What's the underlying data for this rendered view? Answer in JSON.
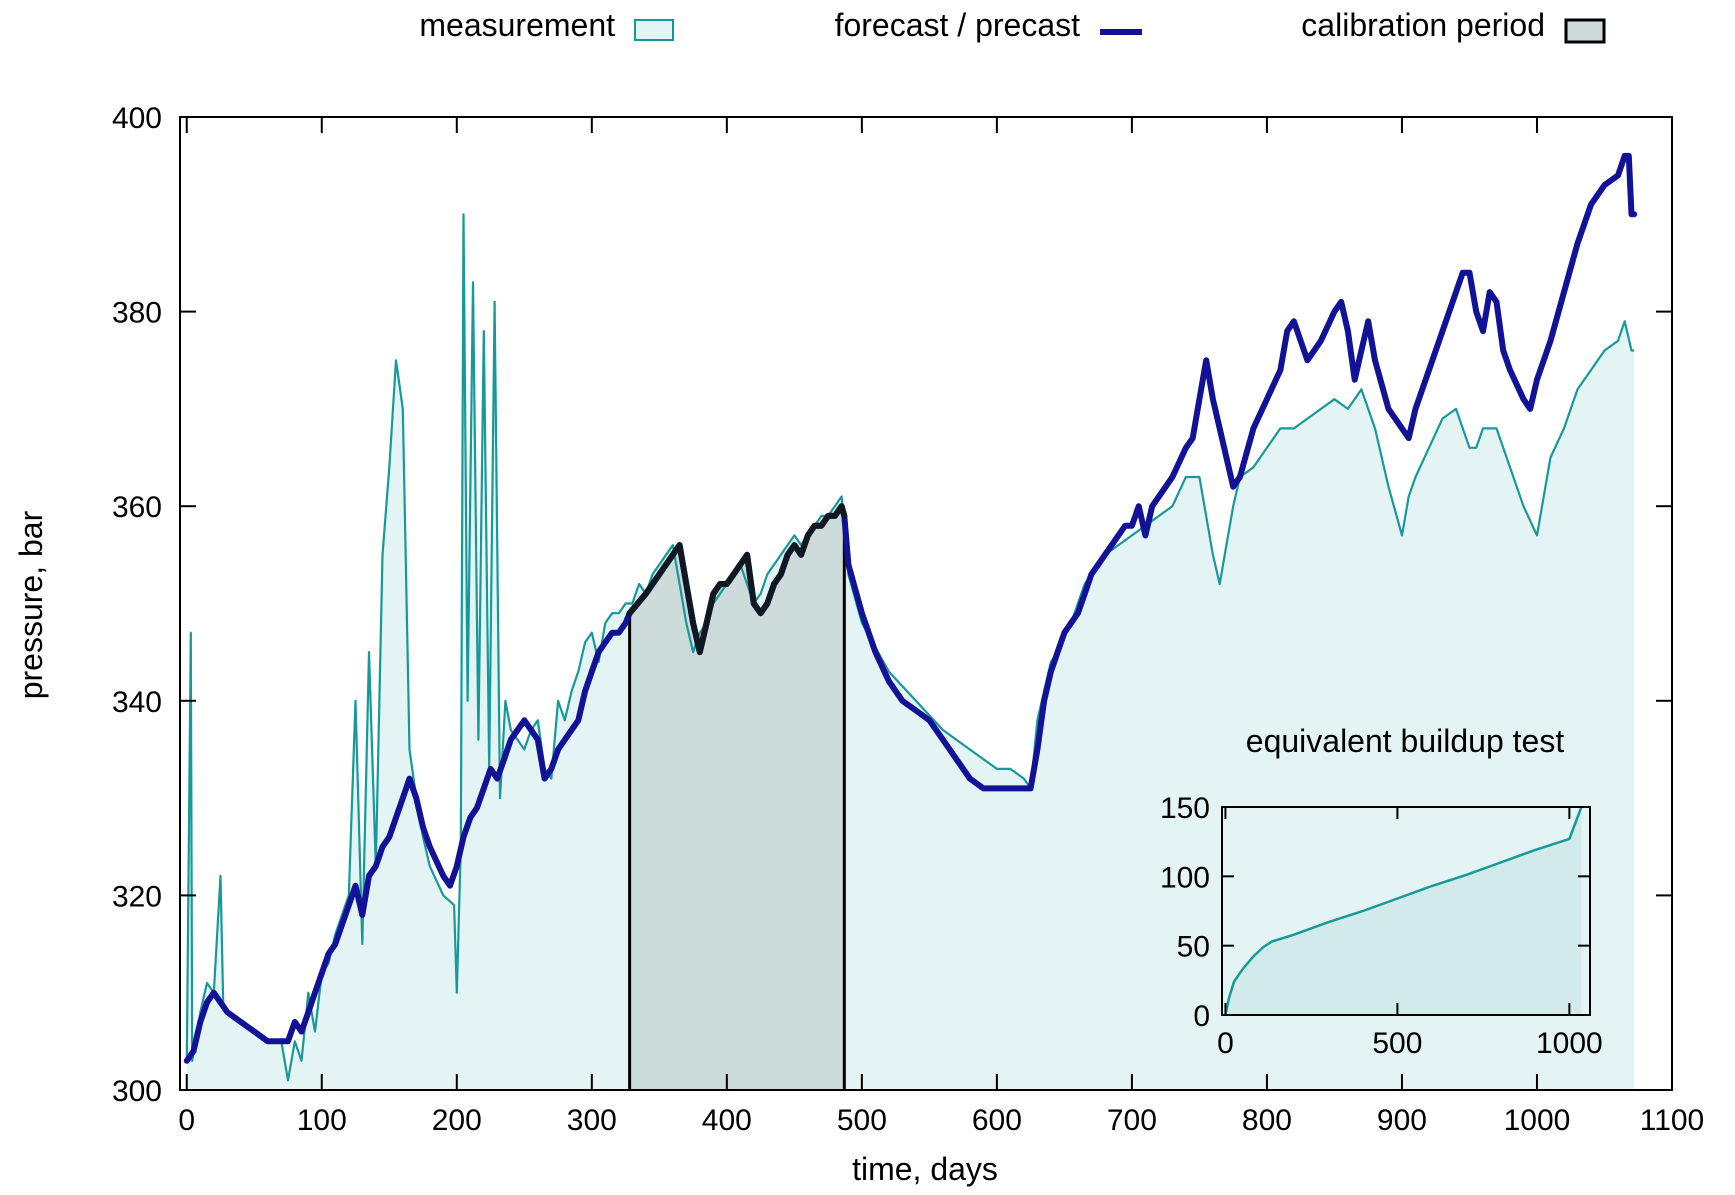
{
  "colors": {
    "measurement_line": "#17999a",
    "measurement_fill": "#e4f4f4",
    "forecast_line": "#121296",
    "calibration_fill": "#cddbdb",
    "calibration_forecast_line": "#101822",
    "inset_fill": "#d2eaea",
    "axis": "#000000"
  },
  "legend": {
    "measurement": "measurement",
    "forecast": "forecast / precast",
    "calibration": "calibration period"
  },
  "chart_data": [
    {
      "type": "line",
      "xlabel": "time, days",
      "ylabel": "pressure, bar",
      "xlim": [
        -5,
        1100
      ],
      "ylim": [
        300,
        400
      ],
      "xticks": [
        0,
        100,
        200,
        300,
        400,
        500,
        600,
        700,
        800,
        900,
        1000,
        1100
      ],
      "yticks": [
        300,
        320,
        340,
        360,
        380,
        400
      ],
      "calibration_period": [
        328,
        487
      ],
      "series": [
        {
          "name": "measurement",
          "style": "filled-area",
          "x": [
            0,
            3,
            4,
            5,
            10,
            15,
            20,
            25,
            27,
            30,
            40,
            50,
            60,
            70,
            75,
            80,
            85,
            90,
            95,
            100,
            105,
            110,
            115,
            120,
            125,
            130,
            135,
            140,
            145,
            150,
            155,
            160,
            165,
            170,
            175,
            180,
            190,
            198,
            200,
            203,
            205,
            208,
            212,
            216,
            220,
            224,
            228,
            232,
            236,
            240,
            245,
            250,
            255,
            260,
            265,
            270,
            275,
            280,
            285,
            290,
            295,
            300,
            305,
            310,
            315,
            320,
            325,
            330,
            335,
            340,
            345,
            350,
            355,
            360,
            365,
            370,
            375,
            380,
            385,
            390,
            395,
            400,
            405,
            410,
            415,
            420,
            425,
            430,
            435,
            440,
            445,
            450,
            455,
            460,
            465,
            470,
            475,
            480,
            485,
            490,
            500,
            520,
            540,
            560,
            580,
            600,
            610,
            620,
            625,
            630,
            635,
            640,
            645,
            650,
            655,
            660,
            665,
            670,
            675,
            680,
            690,
            700,
            710,
            720,
            730,
            740,
            750,
            760,
            765,
            770,
            775,
            780,
            790,
            800,
            810,
            820,
            830,
            840,
            850,
            860,
            870,
            880,
            890,
            900,
            905,
            910,
            920,
            930,
            940,
            950,
            955,
            960,
            970,
            980,
            990,
            1000,
            1005,
            1010,
            1020,
            1030,
            1040,
            1050,
            1060,
            1065,
            1070,
            1072
          ],
          "y": [
            303,
            347,
            303,
            304,
            308,
            311,
            310,
            322,
            309,
            308,
            307,
            306,
            305,
            305,
            301,
            305,
            303,
            310,
            306,
            312,
            313,
            316,
            318,
            320,
            340,
            315,
            345,
            323,
            355,
            364,
            375,
            370,
            335,
            330,
            326,
            323,
            320,
            319,
            310,
            325,
            390,
            340,
            383,
            336,
            378,
            333,
            381,
            330,
            340,
            337,
            336,
            335,
            337,
            338,
            333,
            332,
            340,
            338,
            341,
            343,
            346,
            347,
            344,
            348,
            349,
            349,
            350,
            350,
            352,
            351,
            353,
            354,
            355,
            356,
            352,
            348,
            345,
            347,
            348,
            350,
            351,
            352,
            353,
            354,
            352,
            350,
            351,
            353,
            354,
            355,
            356,
            357,
            356,
            357,
            358,
            359,
            359,
            360,
            361,
            353,
            348,
            343,
            340,
            337,
            335,
            333,
            333,
            332,
            331,
            338,
            341,
            344,
            345,
            347,
            348,
            350,
            352,
            353,
            354,
            355,
            356,
            357,
            358,
            359,
            360,
            363,
            363,
            355,
            352,
            356,
            360,
            363,
            364,
            366,
            368,
            368,
            369,
            370,
            371,
            370,
            372,
            368,
            362,
            357,
            361,
            363,
            366,
            369,
            370,
            366,
            366,
            368,
            368,
            364,
            360,
            357,
            361,
            365,
            368,
            372,
            374,
            376,
            377,
            379,
            376,
            376
          ]
        },
        {
          "name": "forecast / precast",
          "style": "thick-line",
          "x": [
            0,
            5,
            10,
            15,
            20,
            25,
            30,
            40,
            50,
            60,
            70,
            75,
            80,
            85,
            90,
            95,
            100,
            105,
            110,
            115,
            120,
            125,
            130,
            135,
            140,
            145,
            150,
            155,
            160,
            165,
            170,
            175,
            180,
            190,
            195,
            200,
            205,
            210,
            215,
            220,
            225,
            230,
            235,
            240,
            245,
            250,
            255,
            260,
            265,
            270,
            275,
            280,
            285,
            290,
            295,
            300,
            305,
            310,
            315,
            320,
            325,
            328,
            340,
            350,
            360,
            365,
            370,
            375,
            380,
            385,
            390,
            395,
            400,
            405,
            410,
            415,
            420,
            425,
            430,
            435,
            440,
            445,
            450,
            455,
            460,
            465,
            470,
            475,
            480,
            485,
            487,
            490,
            500,
            510,
            520,
            530,
            540,
            550,
            560,
            570,
            580,
            590,
            600,
            610,
            620,
            625,
            630,
            635,
            640,
            645,
            650,
            655,
            660,
            665,
            670,
            675,
            680,
            685,
            690,
            695,
            700,
            705,
            710,
            715,
            720,
            730,
            740,
            745,
            750,
            755,
            760,
            765,
            770,
            775,
            780,
            790,
            800,
            810,
            815,
            820,
            830,
            840,
            850,
            855,
            860,
            865,
            870,
            875,
            880,
            890,
            900,
            905,
            910,
            920,
            930,
            940,
            945,
            950,
            955,
            960,
            965,
            970,
            975,
            980,
            990,
            995,
            1000,
            1010,
            1020,
            1030,
            1040,
            1050,
            1060,
            1065,
            1068,
            1070,
            1072
          ],
          "y": [
            303,
            304,
            307,
            309,
            310,
            309,
            308,
            307,
            306,
            305,
            305,
            305,
            307,
            306,
            308,
            310,
            312,
            314,
            315,
            317,
            319,
            321,
            318,
            322,
            323,
            325,
            326,
            328,
            330,
            332,
            330,
            327,
            325,
            322,
            321,
            323,
            326,
            328,
            329,
            331,
            333,
            332,
            334,
            336,
            337,
            338,
            337,
            336,
            332,
            333,
            335,
            336,
            337,
            338,
            341,
            343,
            345,
            346,
            347,
            347,
            348,
            349,
            351,
            353,
            355,
            356,
            352,
            348,
            345,
            348,
            351,
            352,
            352,
            353,
            354,
            355,
            350,
            349,
            350,
            352,
            353,
            355,
            356,
            355,
            357,
            358,
            358,
            359,
            359,
            360,
            359,
            354,
            349,
            345,
            342,
            340,
            339,
            338,
            336,
            334,
            332,
            331,
            331,
            331,
            331,
            331,
            335,
            340,
            343,
            345,
            347,
            348,
            349,
            351,
            353,
            354,
            355,
            356,
            357,
            358,
            358,
            360,
            357,
            360,
            361,
            363,
            366,
            367,
            371,
            375,
            371,
            368,
            365,
            362,
            363,
            368,
            371,
            374,
            378,
            379,
            375,
            377,
            380,
            381,
            378,
            373,
            376,
            379,
            375,
            370,
            368,
            367,
            370,
            374,
            378,
            382,
            384,
            384,
            380,
            378,
            382,
            381,
            376,
            374,
            371,
            370,
            373,
            377,
            382,
            387,
            391,
            393,
            394,
            396,
            396,
            390,
            390
          ]
        }
      ]
    },
    {
      "type": "area",
      "title": "equivalent buildup test",
      "xlim": [
        -10,
        1060
      ],
      "ylim": [
        0,
        150
      ],
      "xticks": [
        0,
        500,
        1000
      ],
      "yticks": [
        0,
        50,
        100,
        150
      ],
      "series": [
        {
          "name": "",
          "x": [
            0,
            10,
            25,
            50,
            80,
            110,
            135,
            200,
            300,
            400,
            500,
            600,
            700,
            800,
            900,
            1000,
            1035
          ],
          "y": [
            0,
            12,
            24,
            33,
            42,
            49,
            53,
            58,
            67,
            75,
            84,
            93,
            101,
            110,
            119,
            127,
            150
          ]
        }
      ]
    }
  ]
}
